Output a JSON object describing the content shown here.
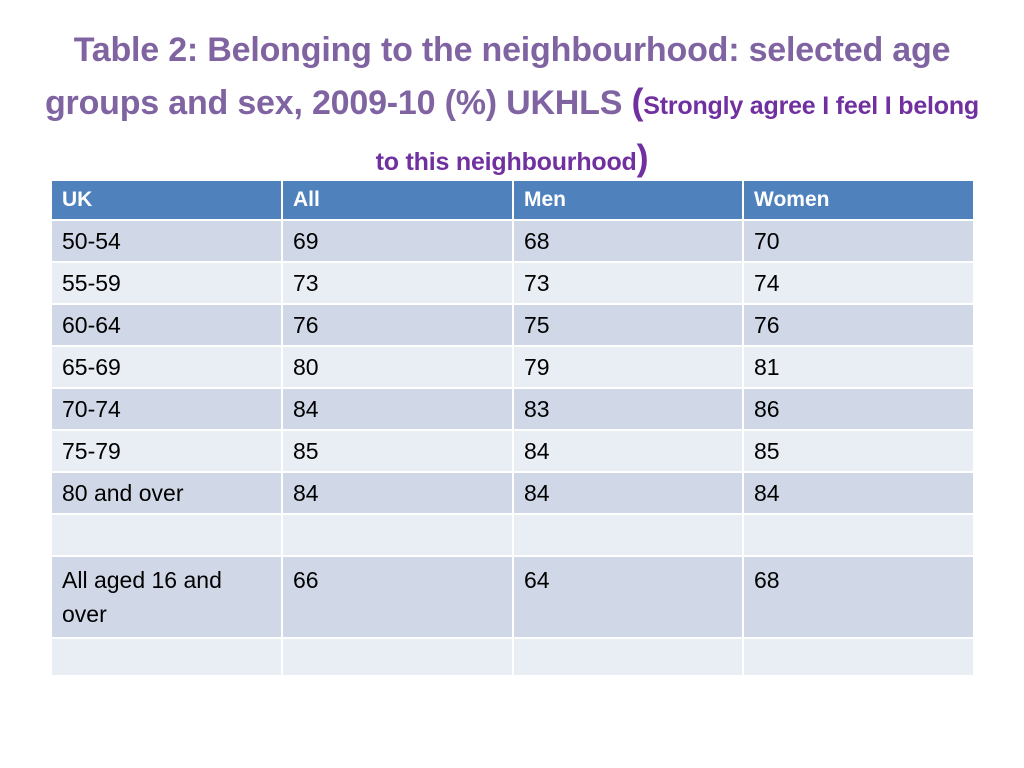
{
  "title": {
    "main": "Table 2: Belonging to the neighbourhood: selected age groups and sex, 2009-10 (%) UKHLS ",
    "open_paren": "(",
    "subtitle": "Strongly agree I feel I belong to this neighbourhood",
    "close_paren": ")"
  },
  "table": {
    "headers": [
      "UK",
      "All",
      "Men",
      "Women"
    ],
    "rows": [
      {
        "uk": "50-54",
        "all": "69",
        "men": "68",
        "women": "70"
      },
      {
        "uk": "55-59",
        "all": "73",
        "men": "73",
        "women": "74"
      },
      {
        "uk": "60-64",
        "all": "76",
        "men": "75",
        "women": "76"
      },
      {
        "uk": "65-69",
        "all": "80",
        "men": "79",
        "women": "81"
      },
      {
        "uk": "70-74",
        "all": "84",
        "men": "83",
        "women": "86"
      },
      {
        "uk": "75-79",
        "all": "85",
        "men": "84",
        "women": "85"
      },
      {
        "uk": "80 and over",
        "all": "84",
        "men": "84",
        "women": "84"
      },
      {
        "uk": "",
        "all": "",
        "men": "",
        "women": ""
      },
      {
        "uk": "All aged 16 and over",
        "all": "66",
        "men": "64",
        "women": "68"
      },
      {
        "uk": "",
        "all": "",
        "men": "",
        "women": ""
      }
    ]
  },
  "colors": {
    "title": "#8064a2",
    "subtitle": "#7030a0",
    "header_bg": "#4f81bd",
    "row_dark": "#d0d8e8",
    "row_light": "#e9edf4"
  }
}
